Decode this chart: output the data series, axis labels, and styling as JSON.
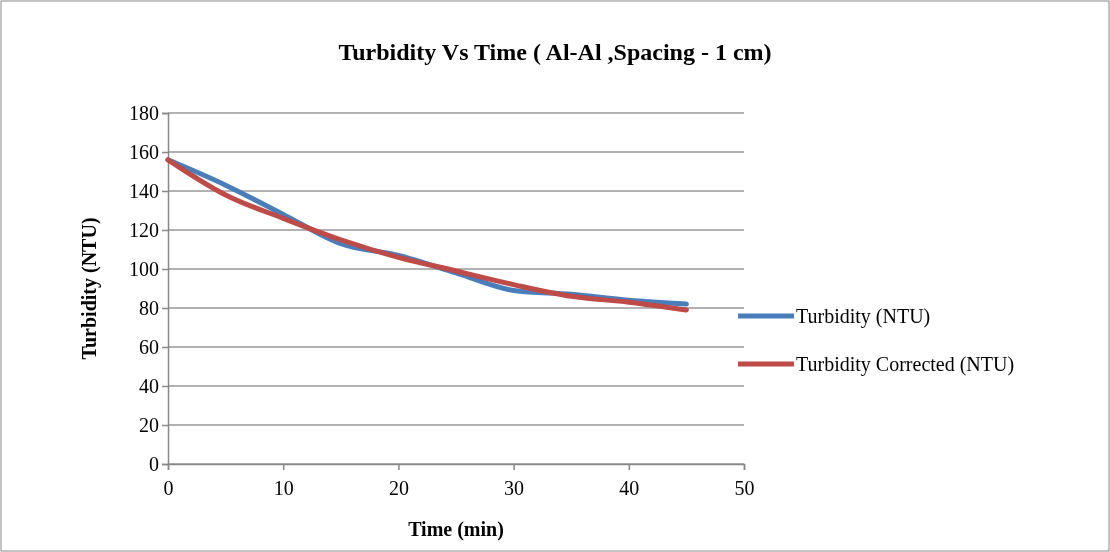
{
  "chart_data": {
    "type": "line",
    "title": "Turbidity Vs Time ( Al-Al ,Spacing - 1 cm)",
    "xlabel": "Time (min)",
    "ylabel": "Turbidity (NTU)",
    "x": [
      0,
      5,
      10,
      15,
      20,
      25,
      30,
      35,
      40,
      45
    ],
    "series": [
      {
        "name": "Turbidity (NTU)",
        "color": "#4a7ebb",
        "values": [
          156,
          143,
          128,
          113,
          107,
          98,
          89,
          87,
          84,
          82
        ]
      },
      {
        "name": "Turbidity Corrected (NTU)",
        "color": "#be4b48",
        "values": [
          156,
          138,
          126,
          115,
          106,
          99,
          92,
          86,
          83,
          79
        ]
      }
    ],
    "xlim": [
      0,
      50
    ],
    "xticks": [
      0,
      10,
      20,
      30,
      40,
      50
    ],
    "ylim": [
      0,
      180
    ],
    "yticks": [
      0,
      20,
      40,
      60,
      80,
      100,
      120,
      140,
      160,
      180
    ],
    "grid": "y",
    "legend": "right",
    "marker": "none",
    "line_style": "solid"
  }
}
